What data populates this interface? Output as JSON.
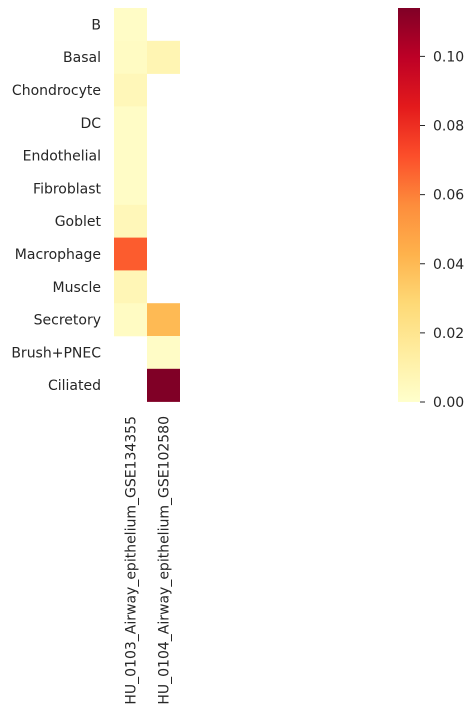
{
  "chart_data": {
    "type": "heatmap",
    "rows": [
      "B",
      "Basal",
      "Chondrocyte",
      "DC",
      "Endothelial",
      "Fibroblast",
      "Goblet",
      "Macrophage",
      "Muscle",
      "Secretory",
      "Brush+PNEC",
      "Ciliated"
    ],
    "columns": [
      "HU_0103_Airway_epithelium_GSE134355",
      "HU_0104_Airway_epithelium_GSE102580"
    ],
    "values": [
      [
        0.002,
        null
      ],
      [
        0.003,
        0.008
      ],
      [
        0.006,
        null
      ],
      [
        0.002,
        null
      ],
      [
        0.002,
        null
      ],
      [
        0.002,
        null
      ],
      [
        0.006,
        null
      ],
      [
        0.068,
        null
      ],
      [
        0.007,
        null
      ],
      [
        0.003,
        0.04
      ],
      [
        null,
        0.002
      ],
      [
        null,
        0.114
      ]
    ],
    "colorbar": {
      "colormap": "YlOrRd",
      "range": [
        0.0,
        0.114
      ],
      "ticks": [
        0.0,
        0.02,
        0.04,
        0.06,
        0.08,
        0.1
      ],
      "tick_labels": [
        "0.00",
        "0.02",
        "0.04",
        "0.06",
        "0.08",
        "0.10"
      ]
    },
    "title": "",
    "xlabel": "",
    "ylabel": ""
  }
}
